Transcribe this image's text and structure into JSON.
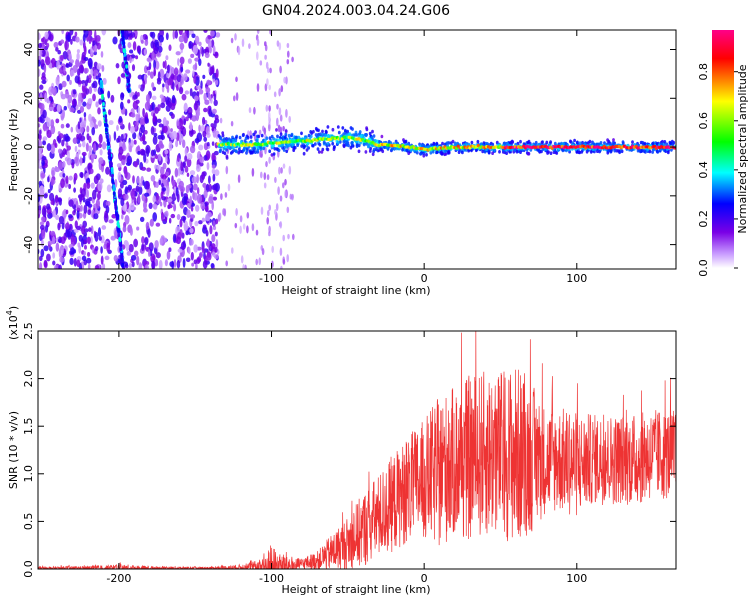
{
  "title": "GN04.2024.003.04.24.G06",
  "chart_data": [
    {
      "type": "heatmap",
      "xlabel": "Height of straight line (km)",
      "ylabel": "Frequency (Hz)",
      "xlim": [
        -253,
        165
      ],
      "ylim": [
        -50,
        48
      ],
      "x_ticks": [
        -200,
        -100,
        0,
        100
      ],
      "x_tick_labels": [
        "-200",
        "-100",
        "0",
        "100"
      ],
      "y_ticks": [
        -40,
        -20,
        0,
        20,
        40
      ],
      "y_tick_labels": [
        "-40",
        "-20",
        "0",
        "20",
        "40"
      ],
      "colorbar": {
        "label": "Normalized spectral amplitude",
        "range": [
          0,
          0.97
        ],
        "ticks": [
          0.0,
          0.2,
          0.4,
          0.6,
          0.8
        ],
        "tick_labels": [
          "0.0",
          "0.2",
          "0.4",
          "0.6",
          "0.8"
        ],
        "colors": [
          "#ffffff",
          "#c89bff",
          "#7a00e6",
          "#0000ff",
          "#00ffff",
          "#00ff00",
          "#ffff00",
          "#ff0000",
          "#ff0088"
        ]
      },
      "features": {
        "noise_band_x": [
          -253,
          -135
        ],
        "sparse_band_x": [
          -135,
          -85
        ],
        "carrier_line": [
          [
            -135,
            1
          ],
          [
            -110,
            1
          ],
          [
            -90,
            2
          ],
          [
            -70,
            3
          ],
          [
            -50,
            4
          ],
          [
            -40,
            3
          ],
          [
            -30,
            1
          ],
          [
            -10,
            0
          ],
          [
            0,
            -1
          ],
          [
            20,
            0
          ],
          [
            40,
            0
          ],
          [
            60,
            0
          ],
          [
            80,
            0
          ],
          [
            100,
            0
          ],
          [
            120,
            0
          ],
          [
            140,
            0
          ],
          [
            165,
            0
          ]
        ],
        "diagonal_track_1": [
          [
            -212,
            28
          ],
          [
            -197,
            -50
          ]
        ],
        "diagonal_track_2": [
          [
            -198,
            48
          ],
          [
            -193,
            22
          ]
        ]
      }
    },
    {
      "type": "line",
      "xlabel": "Height of straight line (km)",
      "ylabel": "SNR (10 * v/v)",
      "y_multiplier": "(x10",
      "y_multiplier_exp": "4",
      "y_multiplier_close": ")",
      "xlim": [
        -253,
        165
      ],
      "ylim": [
        0,
        2.5
      ],
      "x_ticks": [
        -200,
        -100,
        0,
        100
      ],
      "x_tick_labels": [
        "-200",
        "-100",
        "0",
        "100"
      ],
      "y_ticks": [
        0.0,
        0.5,
        1.0,
        1.5,
        2.0,
        2.5
      ],
      "y_tick_labels": [
        "0.0",
        "0.5",
        "1.0",
        "1.5",
        "2.0",
        "2.5"
      ],
      "color": "#ee3333",
      "envelope": {
        "x": [
          -253,
          -220,
          -200,
          -180,
          -160,
          -140,
          -120,
          -110,
          -100,
          -95,
          -90,
          -85,
          -80,
          -70,
          -60,
          -50,
          -40,
          -30,
          -20,
          -10,
          0,
          10,
          20,
          30,
          40,
          50,
          60,
          70,
          80,
          90,
          100,
          110,
          120,
          130,
          140,
          150,
          165
        ],
        "base": [
          0.01,
          0.01,
          0.01,
          0.01,
          0.01,
          0.01,
          0.02,
          0.03,
          0.05,
          0.05,
          0.04,
          0.04,
          0.06,
          0.1,
          0.2,
          0.3,
          0.45,
          0.6,
          0.75,
          0.9,
          1.0,
          1.1,
          1.2,
          1.25,
          1.3,
          1.3,
          1.3,
          1.25,
          1.2,
          1.2,
          1.15,
          1.2,
          1.2,
          1.2,
          1.2,
          1.25,
          1.25
        ],
        "spread": [
          0.02,
          0.03,
          0.06,
          0.03,
          0.02,
          0.02,
          0.04,
          0.08,
          0.3,
          0.15,
          0.2,
          0.1,
          0.08,
          0.12,
          0.25,
          0.35,
          0.5,
          0.55,
          0.65,
          0.7,
          0.8,
          1.0,
          1.0,
          1.1,
          1.1,
          1.1,
          1.2,
          1.0,
          0.7,
          0.7,
          0.7,
          0.6,
          0.6,
          0.6,
          0.6,
          0.6,
          0.6
        ]
      }
    }
  ]
}
